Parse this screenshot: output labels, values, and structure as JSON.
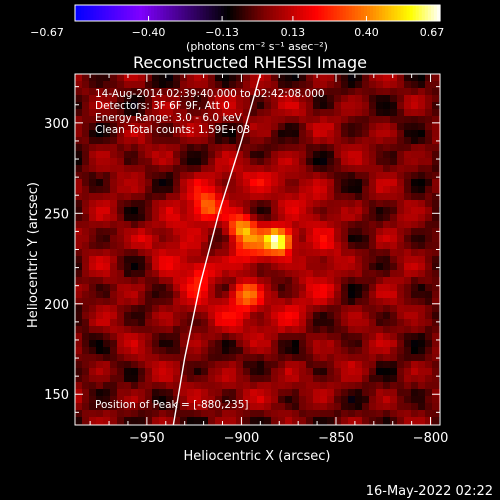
{
  "chart_data": {
    "type": "heatmap",
    "title": "Reconstructed RHESSI Image",
    "xlabel": "Heliocentric X (arcsec)",
    "ylabel": "Heliocentric Y (arcsec)",
    "xlim": [
      -988,
      -795
    ],
    "ylim": [
      133,
      327
    ],
    "x_ticks": [
      -950,
      -900,
      -850,
      -800
    ],
    "x_tick_labels": [
      "−950",
      "−900",
      "−850",
      "−800"
    ],
    "y_ticks": [
      150,
      200,
      250,
      300
    ],
    "y_tick_labels": [
      "150",
      "200",
      "250",
      "300"
    ],
    "colorbar": {
      "ticks": [
        -0.67,
        -0.4,
        -0.13,
        0.13,
        0.4,
        0.67
      ],
      "tick_labels": [
        "−0.67",
        "−0.40",
        "−0.13",
        "0.13",
        "0.40",
        "0.67"
      ],
      "unit_label": "(photons cm⁻² s⁻¹ asec⁻²)",
      "colormap": [
        "#0000ff",
        "#7f00ff",
        "#000000",
        "#7f0000",
        "#ff0000",
        "#ff7f00",
        "#ffff00",
        "#ffffff"
      ]
    },
    "annotations": [
      "14-Aug-2014 02:39:40.000 to 02:42:08.000",
      "Detectors: 3F 6F 9F, Att 0",
      "Energy Range: 3.0 - 6.0 keV",
      "Clean    Total counts: 1.59E+03"
    ],
    "peak_label": "Position of Peak = [-880,235]",
    "peak": {
      "x": -880,
      "y": 235,
      "value": 0.67
    },
    "sources": [
      {
        "x": -880,
        "y": 235,
        "amp": 0.67
      },
      {
        "x": -900,
        "y": 242,
        "amp": 0.42
      },
      {
        "x": -918,
        "y": 253,
        "amp": 0.3
      },
      {
        "x": -898,
        "y": 205,
        "amp": 0.38
      },
      {
        "x": -920,
        "y": 218,
        "amp": 0.22
      },
      {
        "x": -950,
        "y": 235,
        "amp": 0.12
      }
    ],
    "limb_curve": [
      [
        -936,
        133
      ],
      [
        -930,
        170
      ],
      [
        -922,
        210
      ],
      [
        -912,
        250
      ],
      [
        -900,
        290
      ],
      [
        -890,
        327
      ]
    ],
    "grid": false,
    "footer_date": "16-May-2022 02:22"
  }
}
